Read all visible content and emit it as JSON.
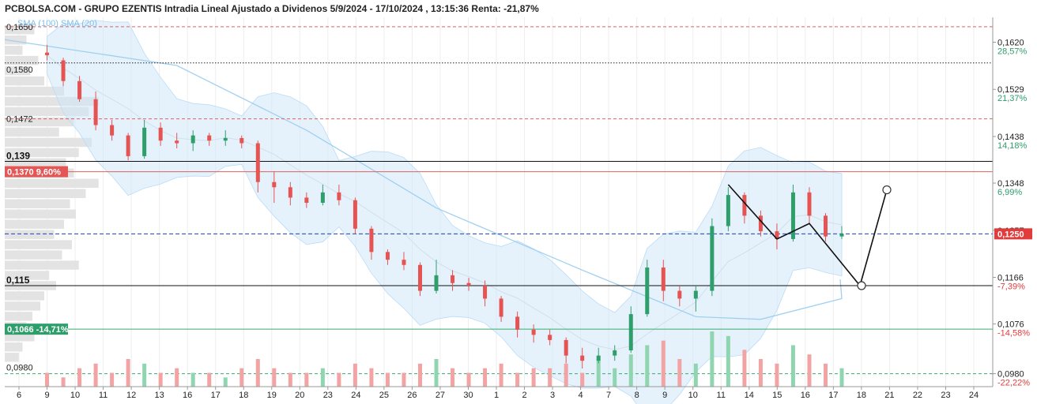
{
  "title": "PCBOLSA.COM - GRUPO EZENTIS Intradia Lineal Ajustado a Dividenos 5/9/2024 - 17/10/2024 , 13:15:36 Renta: -21,87%",
  "legend": "SMA (100) SMA (20)",
  "colors": {
    "up": "#2e9e6b",
    "down": "#e55353",
    "band": "#cfe8fa",
    "sma": "#9fd0f0",
    "red_tag": "#e45757",
    "green_tag": "#2e9e6b",
    "current": "#e23b3b",
    "dash_blue": "#1f3fbf"
  },
  "chart_data": {
    "type": "candlestick",
    "ylim": [
      0.0955,
      0.1668
    ],
    "x_tick_labels": [
      "6",
      "9",
      "10",
      "11",
      "12",
      "13",
      "16",
      "17",
      "18",
      "19",
      "20",
      "23",
      "24",
      "25",
      "26",
      "27",
      "30",
      "1",
      "2",
      "3",
      "4",
      "7",
      "8",
      "9",
      "10",
      "11",
      "14",
      "15",
      "16",
      "17",
      "18",
      "21",
      "22",
      "23",
      "24"
    ],
    "right_axis": [
      {
        "price": "0,1620",
        "pct": "28,57%",
        "value": 0.162
      },
      {
        "price": "0,1529",
        "pct": "21,37%",
        "value": 0.1529
      },
      {
        "price": "0,1438",
        "pct": "14,18%",
        "value": 0.1438
      },
      {
        "price": "0,1348",
        "pct": "6,99%",
        "value": 0.1348
      },
      {
        "price": "0,1257",
        "pct": "",
        "value": 0.1257
      },
      {
        "price": "0,1166",
        "pct": "-7,39%",
        "value": 0.1166
      },
      {
        "price": "0,1076",
        "pct": "-14,58%",
        "value": 0.1076
      },
      {
        "price": "0,0980",
        "pct": "-22,22%",
        "value": 0.098
      }
    ],
    "current_price": {
      "label": "0,1250",
      "value": 0.125
    },
    "left_levels": [
      {
        "label": "0,1650",
        "value": 0.165,
        "style": "red-dash"
      },
      {
        "label": "0,1580",
        "value": 0.158,
        "style": "black-dot"
      },
      {
        "label": "0,1472",
        "value": 0.1472,
        "style": "red-dash"
      },
      {
        "label": "0,139",
        "value": 0.139,
        "style": "black-solid"
      },
      {
        "label": "0,1370 9,60%",
        "value": 0.137,
        "style": "red-tag"
      },
      {
        "label": "0,115",
        "value": 0.115,
        "style": "black-solid"
      },
      {
        "label": "0,1066 -14,71%",
        "value": 0.1066,
        "style": "green-tag"
      },
      {
        "label": "0,0980",
        "value": 0.098,
        "style": "green-dash"
      }
    ],
    "candles": [
      {
        "o": 0.16,
        "h": 0.1615,
        "l": 0.1585,
        "c": 0.1595
      },
      {
        "o": 0.1585,
        "h": 0.159,
        "l": 0.1535,
        "c": 0.1545
      },
      {
        "o": 0.1545,
        "h": 0.1555,
        "l": 0.1505,
        "c": 0.151
      },
      {
        "o": 0.151,
        "h": 0.1525,
        "l": 0.145,
        "c": 0.146
      },
      {
        "o": 0.146,
        "h": 0.147,
        "l": 0.143,
        "c": 0.144
      },
      {
        "o": 0.144,
        "h": 0.1445,
        "l": 0.1392,
        "c": 0.14
      },
      {
        "o": 0.14,
        "h": 0.147,
        "l": 0.1395,
        "c": 0.1455
      },
      {
        "o": 0.1455,
        "h": 0.1465,
        "l": 0.142,
        "c": 0.143
      },
      {
        "o": 0.143,
        "h": 0.1445,
        "l": 0.1415,
        "c": 0.1425
      },
      {
        "o": 0.1425,
        "h": 0.145,
        "l": 0.141,
        "c": 0.144
      },
      {
        "o": 0.144,
        "h": 0.1445,
        "l": 0.142,
        "c": 0.143
      },
      {
        "o": 0.143,
        "h": 0.145,
        "l": 0.142,
        "c": 0.1435
      },
      {
        "o": 0.1435,
        "h": 0.144,
        "l": 0.1415,
        "c": 0.1425
      },
      {
        "o": 0.1425,
        "h": 0.143,
        "l": 0.133,
        "c": 0.135
      },
      {
        "o": 0.135,
        "h": 0.137,
        "l": 0.131,
        "c": 0.134
      },
      {
        "o": 0.134,
        "h": 0.135,
        "l": 0.1305,
        "c": 0.132
      },
      {
        "o": 0.132,
        "h": 0.133,
        "l": 0.13,
        "c": 0.131
      },
      {
        "o": 0.131,
        "h": 0.1345,
        "l": 0.1305,
        "c": 0.133
      },
      {
        "o": 0.133,
        "h": 0.1345,
        "l": 0.1305,
        "c": 0.1315
      },
      {
        "o": 0.1315,
        "h": 0.132,
        "l": 0.125,
        "c": 0.126
      },
      {
        "o": 0.126,
        "h": 0.1265,
        "l": 0.12,
        "c": 0.1215
      },
      {
        "o": 0.1215,
        "h": 0.122,
        "l": 0.119,
        "c": 0.12
      },
      {
        "o": 0.12,
        "h": 0.1215,
        "l": 0.118,
        "c": 0.119
      },
      {
        "o": 0.119,
        "h": 0.1195,
        "l": 0.113,
        "c": 0.114
      },
      {
        "o": 0.114,
        "h": 0.12,
        "l": 0.1135,
        "c": 0.117
      },
      {
        "o": 0.117,
        "h": 0.118,
        "l": 0.114,
        "c": 0.1155
      },
      {
        "o": 0.1155,
        "h": 0.1165,
        "l": 0.114,
        "c": 0.115
      },
      {
        "o": 0.115,
        "h": 0.116,
        "l": 0.111,
        "c": 0.1125
      },
      {
        "o": 0.1125,
        "h": 0.113,
        "l": 0.108,
        "c": 0.109
      },
      {
        "o": 0.109,
        "h": 0.11,
        "l": 0.105,
        "c": 0.1065
      },
      {
        "o": 0.1065,
        "h": 0.1075,
        "l": 0.104,
        "c": 0.1055
      },
      {
        "o": 0.1055,
        "h": 0.1065,
        "l": 0.1035,
        "c": 0.1045
      },
      {
        "o": 0.1045,
        "h": 0.105,
        "l": 0.1,
        "c": 0.1015
      },
      {
        "o": 0.1015,
        "h": 0.103,
        "l": 0.099,
        "c": 0.1005
      },
      {
        "o": 0.1005,
        "h": 0.103,
        "l": 0.1,
        "c": 0.1015
      },
      {
        "o": 0.1015,
        "h": 0.1035,
        "l": 0.1005,
        "c": 0.1025
      },
      {
        "o": 0.1025,
        "h": 0.111,
        "l": 0.102,
        "c": 0.1095
      },
      {
        "o": 0.1095,
        "h": 0.12,
        "l": 0.109,
        "c": 0.1185
      },
      {
        "o": 0.1185,
        "h": 0.12,
        "l": 0.112,
        "c": 0.114
      },
      {
        "o": 0.114,
        "h": 0.115,
        "l": 0.111,
        "c": 0.1125
      },
      {
        "o": 0.1125,
        "h": 0.115,
        "l": 0.11,
        "c": 0.114
      },
      {
        "o": 0.114,
        "h": 0.128,
        "l": 0.113,
        "c": 0.1265
      },
      {
        "o": 0.1265,
        "h": 0.134,
        "l": 0.1255,
        "c": 0.1325
      },
      {
        "o": 0.1325,
        "h": 0.133,
        "l": 0.127,
        "c": 0.1285
      },
      {
        "o": 0.1285,
        "h": 0.1295,
        "l": 0.1245,
        "c": 0.1255
      },
      {
        "o": 0.1255,
        "h": 0.127,
        "l": 0.122,
        "c": 0.124
      },
      {
        "o": 0.124,
        "h": 0.1345,
        "l": 0.1235,
        "c": 0.133
      },
      {
        "o": 0.133,
        "h": 0.134,
        "l": 0.127,
        "c": 0.1285
      },
      {
        "o": 0.1285,
        "h": 0.129,
        "l": 0.1235,
        "c": 0.1245
      },
      {
        "o": 0.1245,
        "h": 0.1265,
        "l": 0.124,
        "c": 0.125
      }
    ],
    "volumes": [
      3,
      2,
      4,
      5,
      3,
      6,
      5,
      3,
      4,
      3,
      3,
      2,
      4,
      6,
      4,
      3,
      3,
      4,
      3,
      5,
      4,
      3,
      3,
      5,
      6,
      4,
      3,
      4,
      5,
      3,
      4,
      4,
      5,
      3,
      6,
      4,
      7,
      9,
      10,
      6,
      5,
      12,
      11,
      8,
      6,
      5,
      9,
      7,
      5,
      4
    ],
    "profile": [
      0.3,
      0.22,
      0.18,
      0.34,
      0.26,
      0.4,
      0.6,
      0.95,
      0.85,
      0.7,
      0.55,
      0.88,
      0.75,
      0.62,
      0.7,
      0.95,
      0.82,
      0.66,
      0.72,
      0.6,
      0.5,
      0.68,
      0.58,
      0.75,
      0.45,
      0.52,
      0.4,
      0.36,
      0.28,
      0.22,
      0.3,
      0.18,
      0.14
    ],
    "projection": [
      {
        "x": 34.5,
        "y": 0.115
      },
      {
        "x": 35.3,
        "y": 0.115
      },
      {
        "x": 36.4,
        "y": 0.1335
      }
    ]
  }
}
